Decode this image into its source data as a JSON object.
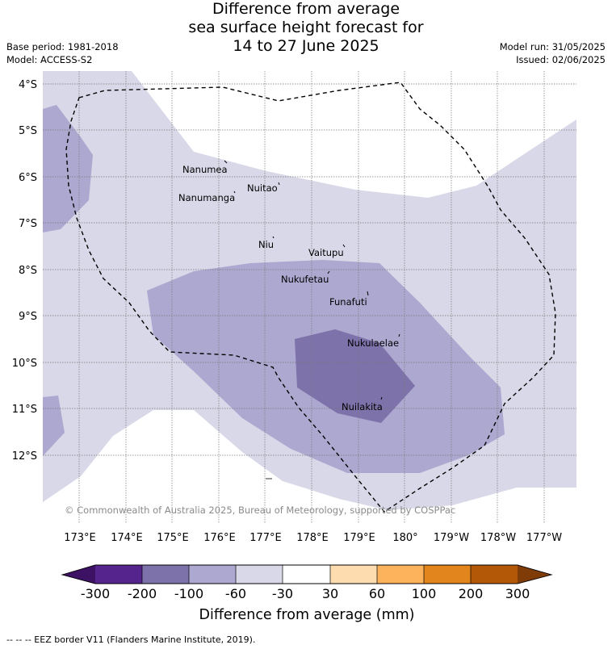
{
  "title": {
    "line1": "Difference from average",
    "line2": "sea surface height forecast for",
    "line3": "14 to 27 June 2025"
  },
  "meta": {
    "base_period": "Base period: 1981-2018",
    "model": "Model: ACCESS-S2",
    "model_run": "Model run: 31/05/2025",
    "issued": "Issued: 02/06/2025"
  },
  "map": {
    "lat_labels": [
      "4°S",
      "5°S",
      "6°S",
      "7°S",
      "8°S",
      "9°S",
      "10°S",
      "11°S",
      "12°S"
    ],
    "lon_labels": [
      "173°E",
      "174°E",
      "175°E",
      "176°E",
      "177°E",
      "178°E",
      "179°E",
      "180°",
      "179°W",
      "178°W",
      "177°W"
    ],
    "places": [
      "Nanumea",
      "Nuitao",
      "Nanumanga",
      "Niu",
      "Vaitupu",
      "Nukufetau",
      "Funafuti",
      "Nukulaelae",
      "Nuilakita"
    ],
    "copyright": "© Commonwealth of Australia 2025, Bureau of Meteorology, supported by COSPPac",
    "colors": {
      "band_neg30_neg60": "#d8d8e8",
      "band_neg60_neg100": "#ada8d0",
      "band_neg100_neg200": "#7e72ab",
      "eez_border": "#000000"
    }
  },
  "legend": {
    "ticks": [
      "-300",
      "-200",
      "-100",
      "-60",
      "-30",
      "30",
      "60",
      "100",
      "200",
      "300"
    ],
    "label": "Difference from average (mm)",
    "colors": [
      "#3d1163",
      "#55248c",
      "#7e72ab",
      "#ada8d0",
      "#d8d8e8",
      "#ffffff",
      "#fddcb0",
      "#fcb35c",
      "#e2851c",
      "#b35806",
      "#7f3b08"
    ]
  },
  "footer": "-- -- -- EEZ border V11 (Flanders Marine Institute, 2019)."
}
